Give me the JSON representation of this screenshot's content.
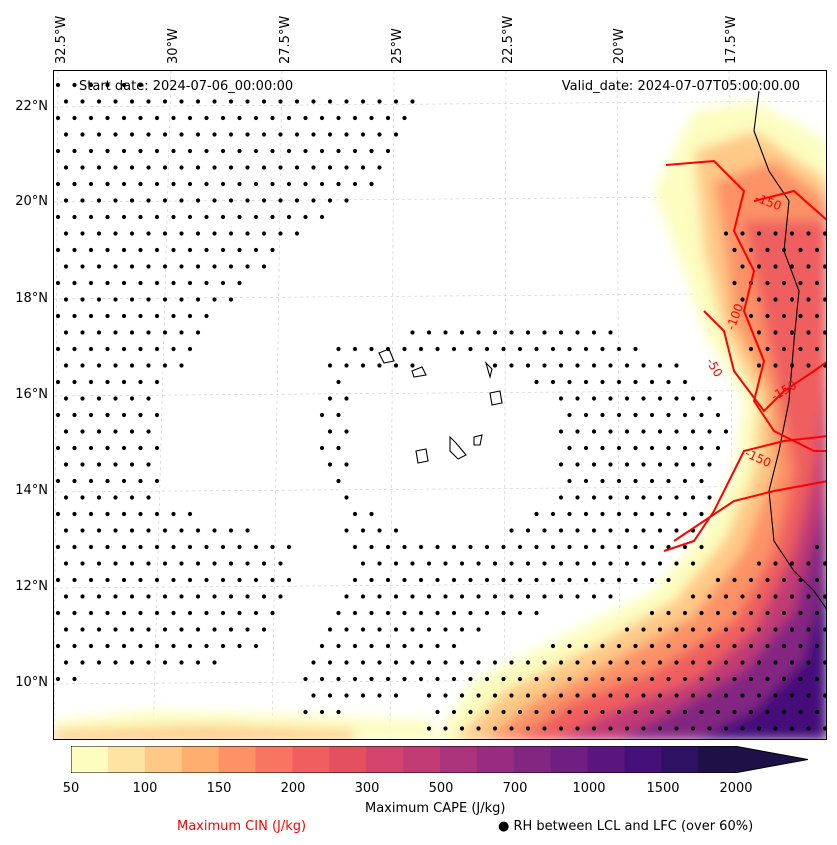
{
  "map": {
    "start_date": "Start date: 2024-07-06_00:00:00",
    "valid_date": "Valid_date: 2024-07-07T05:00:00.00",
    "lon_labels": [
      "32.5°W",
      "30°W",
      "27.5°W",
      "25°W",
      "22.5°W",
      "20°W",
      "17.5°W"
    ],
    "lat_labels": [
      "22°N",
      "20°N",
      "18°N",
      "16°N",
      "14°N",
      "12°N",
      "10°N"
    ],
    "contour_labels": [
      "-150",
      "-100",
      "-50",
      "-150",
      "-150"
    ],
    "cin_color": "#ff0000",
    "stipple_color": "#000000"
  },
  "colorbar": {
    "label": "Maximum CAPE (J/kg)",
    "ticks": [
      "50",
      "100",
      "150",
      "200",
      "300",
      "500",
      "700",
      "1000",
      "1500",
      "2000"
    ],
    "colors": [
      "#fcfdbf",
      "#fee4a3",
      "#fec987",
      "#feae6e",
      "#fc9266",
      "#f87661",
      "#ef5f5f",
      "#e3515f",
      "#d3436e",
      "#c13b75",
      "#ab337c",
      "#972c80",
      "#832681",
      "#6e1f81",
      "#5a167e",
      "#44107a",
      "#2f1163",
      "#1d1147"
    ]
  },
  "legend": {
    "cin_label": "Maximum CIN (J/kg)",
    "rh_label": "● RH between LCL and LFC (over 60%)"
  }
}
